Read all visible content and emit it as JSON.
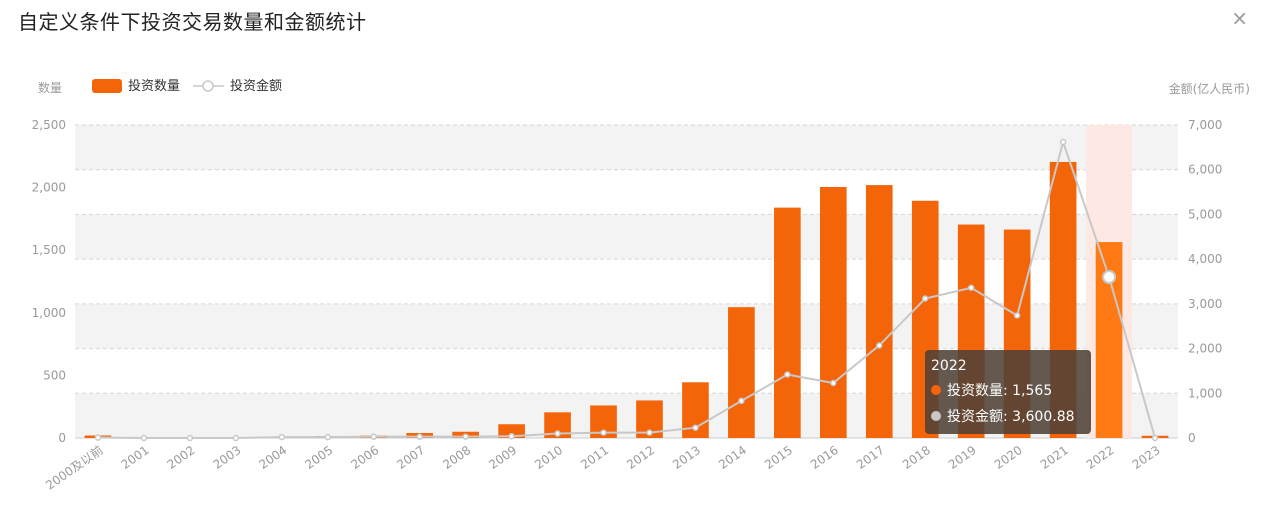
{
  "header": {
    "title": "自定义条件下投资交易数量和金额统计",
    "close_glyph": "×"
  },
  "legend": {
    "left_axis_name": "数量",
    "count_label": "投资数量",
    "amount_label": "投资金额",
    "right_axis_name": "金额(亿人民币)"
  },
  "colors": {
    "bar": "#f4650a",
    "bar_highlight": "#ff7a14",
    "line": "#c8c8c8",
    "band": "#f3f3f3",
    "highlight_band": "#fde8e4"
  },
  "chart_data": {
    "type": "bar",
    "categories": [
      "2000及以前",
      "2001",
      "2002",
      "2003",
      "2004",
      "2005",
      "2006",
      "2007",
      "2008",
      "2009",
      "2010",
      "2011",
      "2012",
      "2013",
      "2014",
      "2015",
      "2016",
      "2017",
      "2018",
      "2019",
      "2020",
      "2021",
      "2022",
      "2023"
    ],
    "series": [
      {
        "name": "投资数量",
        "type": "bar",
        "axis": "left",
        "values": [
          20,
          5,
          5,
          5,
          10,
          15,
          20,
          40,
          50,
          110,
          205,
          260,
          300,
          445,
          1045,
          1840,
          2005,
          2020,
          1895,
          1705,
          1665,
          2205,
          1565,
          18
        ]
      },
      {
        "name": "投资金额",
        "type": "line",
        "axis": "right",
        "values": [
          10,
          0,
          0,
          0,
          20,
          20,
          30,
          30,
          30,
          40,
          100,
          120,
          120,
          230,
          830,
          1420,
          1230,
          2070,
          3120,
          3360,
          2740,
          6620,
          3600.88,
          0
        ]
      }
    ],
    "left_axis": {
      "ylim": [
        0,
        2500
      ],
      "ticks": [
        "0",
        "500",
        "1,000",
        "1,500",
        "2,000",
        "2,500"
      ]
    },
    "right_axis": {
      "ylim": [
        0,
        7000
      ],
      "ticks": [
        "0",
        "1,000",
        "2,000",
        "3,000",
        "4,000",
        "5,000",
        "6,000",
        "7,000"
      ]
    },
    "highlight_category": "2022",
    "grid": true,
    "legend_position": "top-left"
  },
  "tooltip": {
    "title": "2022",
    "count_text": "投资数量: 1,565",
    "amount_text": "投资金额: 3,600.88"
  }
}
